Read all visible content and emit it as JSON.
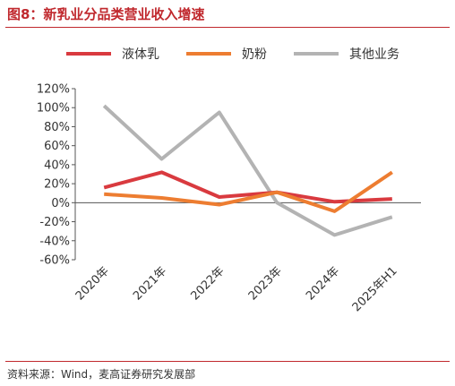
{
  "header": {
    "title": "图8：新乳业分品类营业收入增速"
  },
  "footer": {
    "source": "资料来源：Wind，麦高证券研究发展部"
  },
  "chart_data": {
    "type": "line",
    "title": "",
    "xlabel": "",
    "ylabel": "",
    "categories": [
      "2020年",
      "2021年",
      "2022年",
      "2023年",
      "2024年",
      "2025年H1"
    ],
    "y_ticks": [
      "120%",
      "100%",
      "80%",
      "60%",
      "40%",
      "20%",
      "0%",
      "-20%",
      "-40%",
      "-60%"
    ],
    "ylim": [
      -60,
      120
    ],
    "y_unit": "%",
    "legend_position": "top",
    "grid": false,
    "series": [
      {
        "name": "液体乳",
        "color": "#d93a3f",
        "values": [
          16,
          32,
          6,
          11,
          1,
          4
        ]
      },
      {
        "name": "奶粉",
        "color": "#ed7d31",
        "values": [
          9,
          5,
          -2,
          11,
          -9,
          32
        ]
      },
      {
        "name": "其他业务",
        "color": "#b3b3b3",
        "values": [
          102,
          46,
          95,
          0,
          -34,
          -15
        ]
      }
    ]
  }
}
